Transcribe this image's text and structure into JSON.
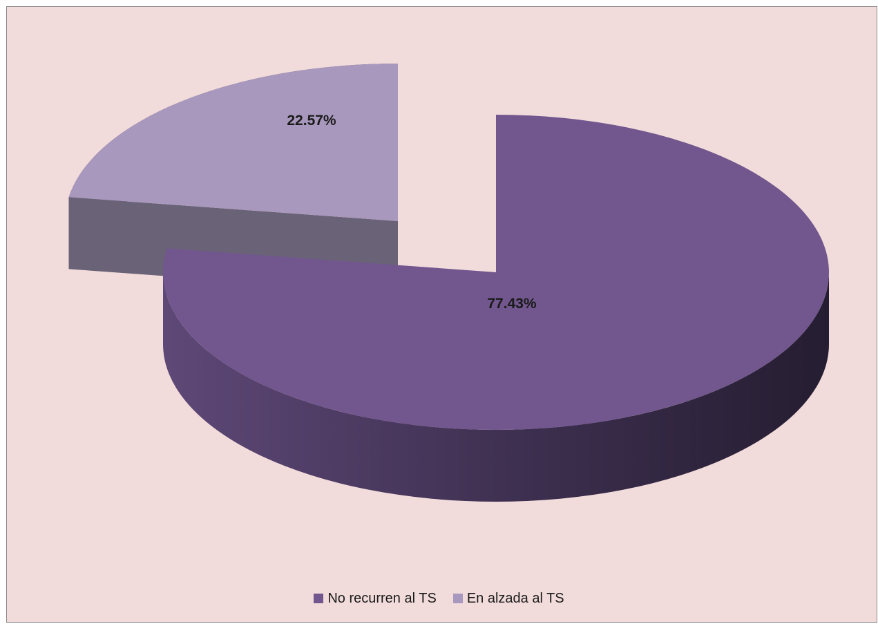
{
  "chart_data": {
    "type": "pie",
    "variant": "3d-exploded",
    "title": "",
    "slices": [
      {
        "name": "No recurren al TS",
        "value": 77.43,
        "label": "77.43%",
        "color": "#71578e"
      },
      {
        "name": "En alzada al TS",
        "value": 22.57,
        "label": "22.57%",
        "color": "#a898bd"
      }
    ],
    "legend_position": "bottom",
    "background_color": "#f2dcdb"
  }
}
